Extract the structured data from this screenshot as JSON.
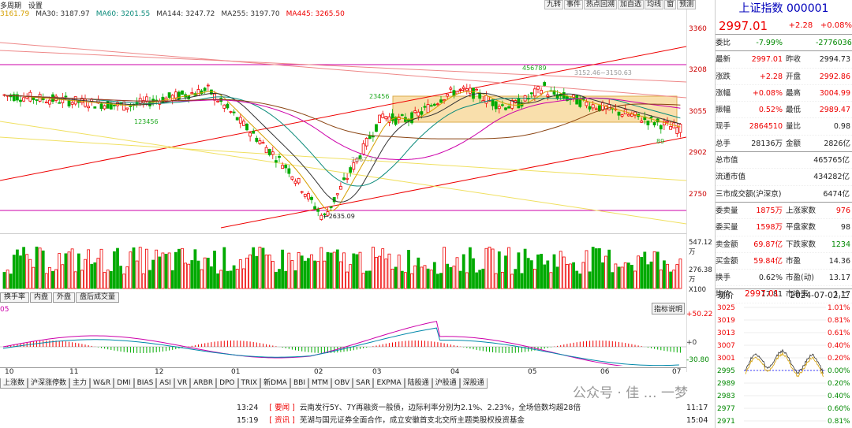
{
  "header": {
    "tab_partial": "多周期",
    "tab_settings": "设置"
  },
  "ma_bar": [
    {
      "label": "3161.79",
      "color": "#d6a000"
    },
    {
      "label": "MA30: 3187.97",
      "color": "#333"
    },
    {
      "label": "MA60: 3201.55",
      "color": "#0a8a7a"
    },
    {
      "label": "MA144: 3247.72",
      "color": "#333"
    },
    {
      "label": "MA255: 3197.70",
      "color": "#333"
    },
    {
      "label": "MA445: 3265.50",
      "color": "#e00"
    }
  ],
  "tools": [
    "九转",
    "事件",
    "热点回溯",
    "加自选",
    "均线",
    "窗",
    "预测"
  ],
  "price_axis": [
    "3360",
    "3208",
    "3055",
    "2902",
    "2750"
  ],
  "volume_axis": [
    "547.12万",
    "276.38万",
    "X100"
  ],
  "macd_axis": [
    "+50.22",
    "+0",
    "-30.80"
  ],
  "macd_zero_label": "05",
  "annotations": {
    "high": "3152.46~3150.63",
    "low": "2635.09",
    "mid": "2867.71",
    "wave_left": "123456",
    "wave_up": "456789",
    "wave_up2": "23456",
    "wave_tail": "89"
  },
  "months": [
    "10",
    "11",
    "12",
    "01",
    "02",
    "03",
    "04",
    "05",
    "06",
    "07"
  ],
  "sub_tabs": [
    "换手率",
    "内盘",
    "外盘",
    "盘后成交量"
  ],
  "indicator_btn": "指标说明",
  "indicator_tabs": [
    "上涨数",
    "沪深涨停数",
    "主力",
    "W&R",
    "DMI",
    "BIAS",
    "ASI",
    "VR",
    "ARBR",
    "DPO",
    "TRIX",
    "新DMA",
    "BBI",
    "MTM",
    "OBV",
    "SAR",
    "EXPMA",
    "陆股通",
    "沪股通",
    "深股通"
  ],
  "news": [
    {
      "time": "13:24",
      "tag": "要闻",
      "text": "云南发行5Y、7Y再融资一般债，边际利率分别为2.1%、2.23%，全场倍数均超28倍",
      "time2": "11:17"
    },
    {
      "time": "15:19",
      "tag": "资讯",
      "text": "芜湖与国元证券全面合作，成立安徽首支北交所主题类股权投资基金",
      "time2": "15:04"
    }
  ],
  "watermark": "公众号 · 佳 … 一梦",
  "quote": {
    "title": "上证指数 000001",
    "price": "2997.01",
    "change": "+2.28",
    "pct": "+0.08%",
    "rows": [
      [
        "委比",
        "-7.99%",
        "",
        "-2776036"
      ],
      [
        "最新",
        "2997.01",
        "昨收",
        "2994.73"
      ],
      [
        "涨跌",
        "+2.28",
        "开盘",
        "2992.86"
      ],
      [
        "涨幅",
        "+0.08%",
        "最高",
        "3004.99"
      ],
      [
        "振幅",
        "0.52%",
        "最低",
        "2989.47"
      ],
      [
        "现手",
        "2864510",
        "量比",
        "0.98"
      ],
      [
        "总手",
        "28136万",
        "金额",
        "2826亿"
      ],
      [
        "总市值",
        "465765亿",
        "",
        ""
      ],
      [
        "流通市值",
        "434282亿",
        "",
        ""
      ],
      [
        "三市成交额(沪深京)",
        "6474亿",
        "",
        ""
      ],
      [
        "委卖量",
        "1875万",
        "上涨家数",
        "976"
      ],
      [
        "委买量",
        "1598万",
        "平盘家数",
        "98"
      ],
      [
        "卖金额",
        "69.87亿",
        "下跌家数",
        "1234"
      ],
      [
        "买金额",
        "59.84亿",
        "市盈",
        "14.36"
      ],
      [
        "换手",
        "0.62%",
        "市盈(动)",
        "13.17"
      ],
      [
        "均价",
        "17.81",
        "市净率",
        "1.17"
      ]
    ]
  },
  "mini": {
    "label": "现价",
    "price": "2997.01",
    "date": "2024-07-02,二",
    "left_axis": [
      "3025",
      "3019",
      "3013",
      "3007",
      "3001",
      "2995",
      "2989",
      "2983",
      "2977",
      "2971"
    ],
    "right_axis": [
      "1.01%",
      "0.81%",
      "0.61%",
      "0.40%",
      "0.20%",
      "0.00%",
      "0.20%",
      "0.40%",
      "0.60%",
      "0.81%"
    ]
  },
  "colors": {
    "up": "#e00",
    "down": "#0a0",
    "box": "#f7d28a"
  }
}
